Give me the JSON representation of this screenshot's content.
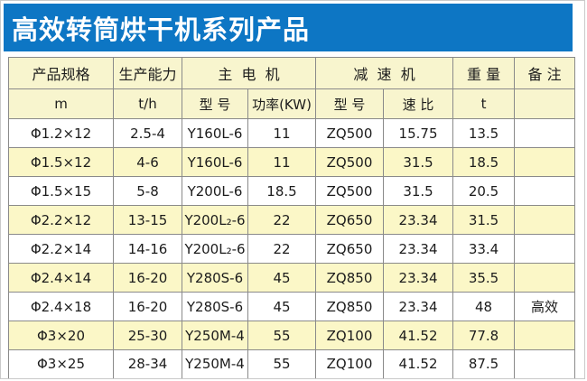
{
  "title": "高效转筒烘干机系列产品",
  "colors": {
    "header_blue": "#0d76c4",
    "header_yellow": "#f8f5ce",
    "row_alt_yellow": "#fbf7c7",
    "title_text": "#ffffff",
    "cell_text": "#1c1c1c"
  },
  "table": {
    "group_headers": [
      "产品规格",
      "生产能力",
      "主  电  机",
      "减  速  机",
      "重 量",
      "备 注"
    ],
    "sub_headers": [
      "m",
      "t/h",
      "型 号",
      "功率(KW)",
      "型 号",
      "速 比",
      "t",
      ""
    ],
    "rows": [
      [
        "Φ1.2×12",
        "2.5-4",
        "Y160L-6",
        "11",
        "ZQ500",
        "15.75",
        "13.5",
        ""
      ],
      [
        "Φ1.5×12",
        "4-6",
        "Y160L-6",
        "11",
        "ZQ500",
        "31.5",
        "18.5",
        ""
      ],
      [
        "Φ1.5×15",
        "5-8",
        "Y200L-6",
        "18.5",
        "ZQ500",
        "31.5",
        "20.5",
        ""
      ],
      [
        "Φ2.2×12",
        "13-15",
        "Y200L₂-6",
        "22",
        "ZQ650",
        "23.34",
        "31.5",
        ""
      ],
      [
        "Φ2.2×14",
        "14-16",
        "Y200L₂-6",
        "22",
        "ZQ650",
        "23.34",
        "33.4",
        ""
      ],
      [
        "Φ2.4×14",
        "16-20",
        "Y280S-6",
        "45",
        "ZQ850",
        "23.34",
        "35.5",
        ""
      ],
      [
        "Φ2.4×18",
        "16-20",
        "Y280S-6",
        "45",
        "ZQ850",
        "23.34",
        "48",
        "高效"
      ],
      [
        "Φ3×20",
        "25-30",
        "Y250M-4",
        "55",
        "ZQ100",
        "41.52",
        "77.8",
        ""
      ],
      [
        "Φ3×25",
        "28-34",
        "Y250M-4",
        "55",
        "ZQ100",
        "41.52",
        "87.5",
        ""
      ]
    ]
  }
}
